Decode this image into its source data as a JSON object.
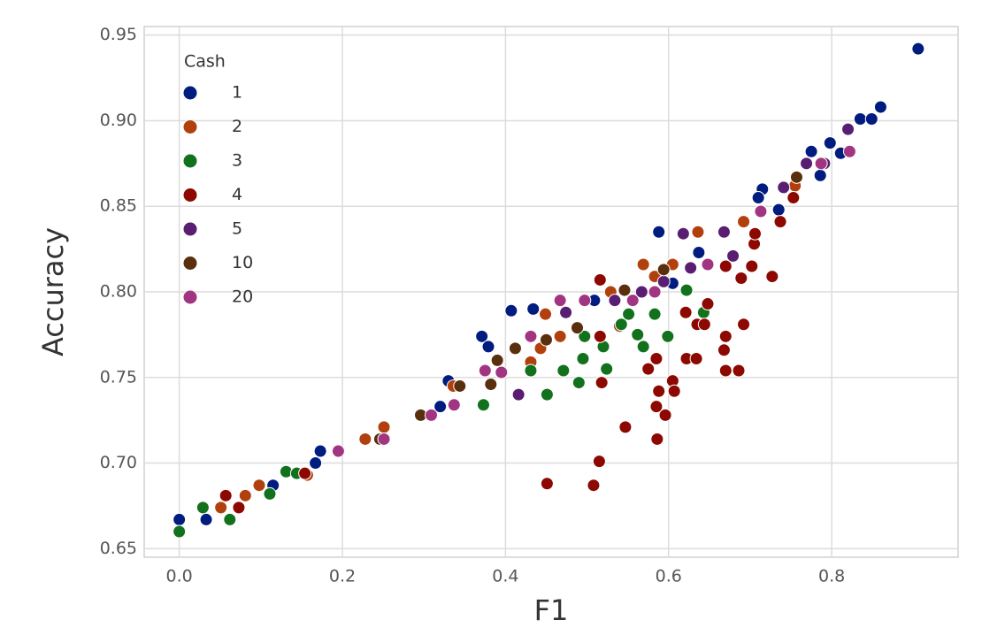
{
  "chart_data": {
    "type": "scatter",
    "x_label": "F1",
    "y_label": "Accuracy",
    "xlim": [
      -0.043,
      0.955
    ],
    "ylim": [
      0.645,
      0.955
    ],
    "xticks": [
      {
        "value": 0,
        "label": "0.0"
      },
      0.2,
      0.4,
      0.6,
      0.8
    ],
    "yticks": [
      0.65,
      {
        "value": 0.7,
        "label": "0.70"
      },
      0.75,
      {
        "value": 0.8,
        "label": "0.80"
      },
      0.85,
      {
        "value": 0.9,
        "label": "0.90"
      },
      0.95
    ],
    "grid": true,
    "legend_title": "Cash",
    "legend_position": "upper left",
    "series": [
      {
        "name": "1",
        "color": "#001c7f",
        "x": [
          0,
          0.033,
          0.167,
          0.173,
          0.115,
          0.33,
          0.32,
          0.371,
          0.379,
          0.407,
          0.434,
          0.509,
          0.588,
          0.594,
          0.605,
          0.715,
          0.735,
          0.775,
          0.798,
          0.811,
          0.835,
          0.849,
          0.86,
          0.906,
          0.786,
          0.71,
          0.637
        ],
        "values": [
          0.667,
          0.667,
          0.7,
          0.707,
          0.687,
          0.748,
          0.733,
          0.774,
          0.768,
          0.789,
          0.79,
          0.795,
          0.835,
          0.806,
          0.805,
          0.86,
          0.848,
          0.882,
          0.887,
          0.881,
          0.901,
          0.901,
          0.908,
          0.942,
          0.868,
          0.855,
          0.823
        ]
      },
      {
        "name": "2",
        "color": "#b1400d",
        "x": [
          0.051,
          0.081,
          0.098,
          0.228,
          0.251,
          0.157,
          0.336,
          0.449,
          0.443,
          0.467,
          0.529,
          0.569,
          0.583,
          0.636,
          0.692,
          0.755,
          0.431,
          0.54,
          0.605
        ],
        "values": [
          0.674,
          0.681,
          0.687,
          0.714,
          0.721,
          0.693,
          0.745,
          0.787,
          0.767,
          0.774,
          0.8,
          0.816,
          0.809,
          0.835,
          0.841,
          0.862,
          0.759,
          0.78,
          0.816
        ]
      },
      {
        "name": "3",
        "color": "#12711c",
        "x": [
          0,
          0.029,
          0.062,
          0.111,
          0.131,
          0.144,
          0.373,
          0.451,
          0.471,
          0.49,
          0.495,
          0.497,
          0.524,
          0.542,
          0.551,
          0.562,
          0.569,
          0.583,
          0.599,
          0.622,
          0.643,
          0.52,
          0.431
        ],
        "values": [
          0.66,
          0.674,
          0.667,
          0.682,
          0.695,
          0.694,
          0.734,
          0.74,
          0.754,
          0.747,
          0.761,
          0.774,
          0.755,
          0.781,
          0.787,
          0.775,
          0.768,
          0.787,
          0.774,
          0.801,
          0.788,
          0.768,
          0.754
        ]
      },
      {
        "name": "4",
        "color": "#8c0800",
        "x": [
          0.057,
          0.073,
          0.154,
          0.451,
          0.508,
          0.515,
          0.518,
          0.547,
          0.586,
          0.596,
          0.588,
          0.585,
          0.605,
          0.607,
          0.575,
          0.585,
          0.621,
          0.622,
          0.634,
          0.635,
          0.644,
          0.648,
          0.516,
          0.516,
          0.67,
          0.686,
          0.668,
          0.67,
          0.692,
          0.67,
          0.689,
          0.702,
          0.705,
          0.713,
          0.727,
          0.737,
          0.753,
          0.706
        ],
        "values": [
          0.681,
          0.674,
          0.694,
          0.688,
          0.687,
          0.701,
          0.747,
          0.721,
          0.714,
          0.728,
          0.742,
          0.733,
          0.748,
          0.742,
          0.755,
          0.761,
          0.788,
          0.761,
          0.761,
          0.781,
          0.781,
          0.793,
          0.807,
          0.774,
          0.754,
          0.754,
          0.766,
          0.774,
          0.781,
          0.815,
          0.808,
          0.815,
          0.828,
          0.847,
          0.809,
          0.841,
          0.855,
          0.834
        ]
      },
      {
        "name": "5",
        "color": "#591e71",
        "x": [
          0.416,
          0.474,
          0.534,
          0.567,
          0.618,
          0.668,
          0.679,
          0.769,
          0.791,
          0.82,
          0.594,
          0.627,
          0.741
        ],
        "values": [
          0.74,
          0.788,
          0.795,
          0.8,
          0.834,
          0.835,
          0.821,
          0.875,
          0.875,
          0.895,
          0.806,
          0.814,
          0.861
        ]
      },
      {
        "name": "10",
        "color": "#592f0d",
        "x": [
          0.246,
          0.296,
          0.344,
          0.382,
          0.39,
          0.412,
          0.45,
          0.488,
          0.546,
          0.594,
          0.757
        ],
        "values": [
          0.714,
          0.728,
          0.745,
          0.746,
          0.76,
          0.767,
          0.772,
          0.779,
          0.801,
          0.813,
          0.867
        ]
      },
      {
        "name": "20",
        "color": "#a23582",
        "x": [
          0.195,
          0.251,
          0.309,
          0.337,
          0.375,
          0.395,
          0.431,
          0.467,
          0.497,
          0.556,
          0.583,
          0.648,
          0.713,
          0.787,
          0.822
        ],
        "values": [
          0.707,
          0.714,
          0.728,
          0.734,
          0.754,
          0.753,
          0.774,
          0.795,
          0.795,
          0.795,
          0.8,
          0.816,
          0.847,
          0.875,
          0.882
        ]
      }
    ]
  }
}
